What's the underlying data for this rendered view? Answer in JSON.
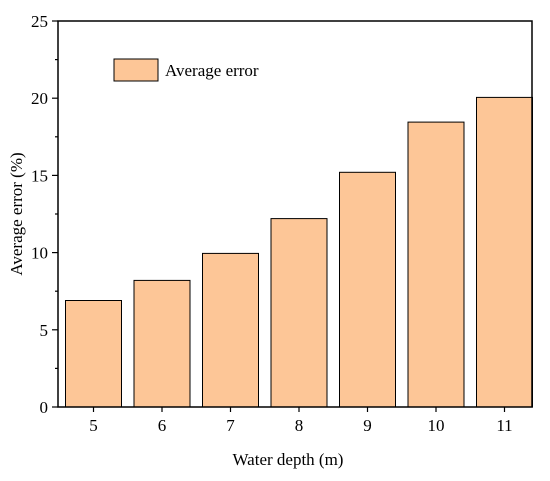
{
  "chart_data": {
    "type": "bar",
    "categories": [
      "5",
      "6",
      "7",
      "8",
      "9",
      "10",
      "11"
    ],
    "series": [
      {
        "name": "Average error",
        "values": [
          6.9,
          8.2,
          9.95,
          12.2,
          15.2,
          18.45,
          20.05
        ]
      }
    ],
    "xlabel": "Water depth (m)",
    "ylabel": "Average error (%)",
    "ylim": [
      0,
      25
    ],
    "yticks": [
      "0",
      "5",
      "10",
      "15",
      "20",
      "25"
    ],
    "grid": false,
    "legend_position": "top-left",
    "colors": {
      "bar_fill": "#FDC697",
      "bar_stroke": "#000000",
      "axis": "#000000"
    }
  }
}
